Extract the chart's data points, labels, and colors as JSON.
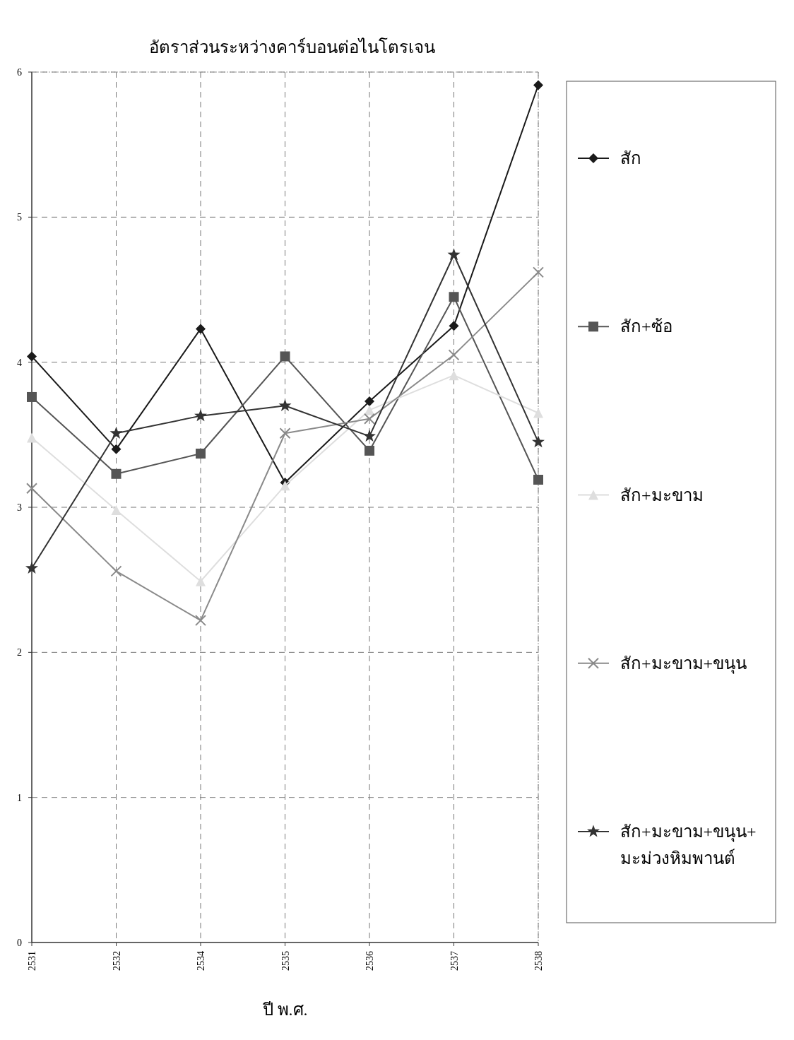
{
  "chart_data": {
    "type": "line",
    "title": "อัตราส่วนระหว่างคาร์บอนต่อไนโตรเจน",
    "xlabel": "ปี พ.ศ.",
    "categories": [
      "2531",
      "2532",
      "2534",
      "2535",
      "2536",
      "2537",
      "2538"
    ],
    "ylim": [
      0,
      6
    ],
    "yticks": [
      0,
      1,
      2,
      3,
      4,
      5,
      6
    ],
    "grid": true,
    "legend": "right",
    "line_style": "solid",
    "series": [
      {
        "name": "สัก",
        "color": "#1a1a1a",
        "marker": "diamond",
        "values": [
          4.04,
          3.4,
          4.23,
          3.17,
          3.73,
          4.25,
          5.91
        ]
      },
      {
        "name": "สัก+ซ้อ",
        "color": "#555555",
        "marker": "square",
        "values": [
          3.76,
          3.23,
          3.37,
          4.04,
          3.39,
          4.45,
          3.19
        ]
      },
      {
        "name": "สัก+มะขาม",
        "color": "#dedede",
        "marker": "triangle",
        "values": [
          3.48,
          2.98,
          2.49,
          3.15,
          3.67,
          3.91,
          3.65
        ]
      },
      {
        "name": "สัก+มะขาม+ขนุน",
        "color": "#8a8a8a",
        "marker": "cross",
        "values": [
          3.13,
          2.56,
          2.22,
          3.51,
          3.61,
          4.05,
          4.62
        ]
      },
      {
        "name": "สัก+มะขาม+ขนุน+มะม่วงหิมพานต์",
        "color": "#333333",
        "marker": "star",
        "values": [
          2.58,
          3.51,
          3.63,
          3.7,
          3.49,
          4.74,
          3.45
        ]
      }
    ]
  }
}
